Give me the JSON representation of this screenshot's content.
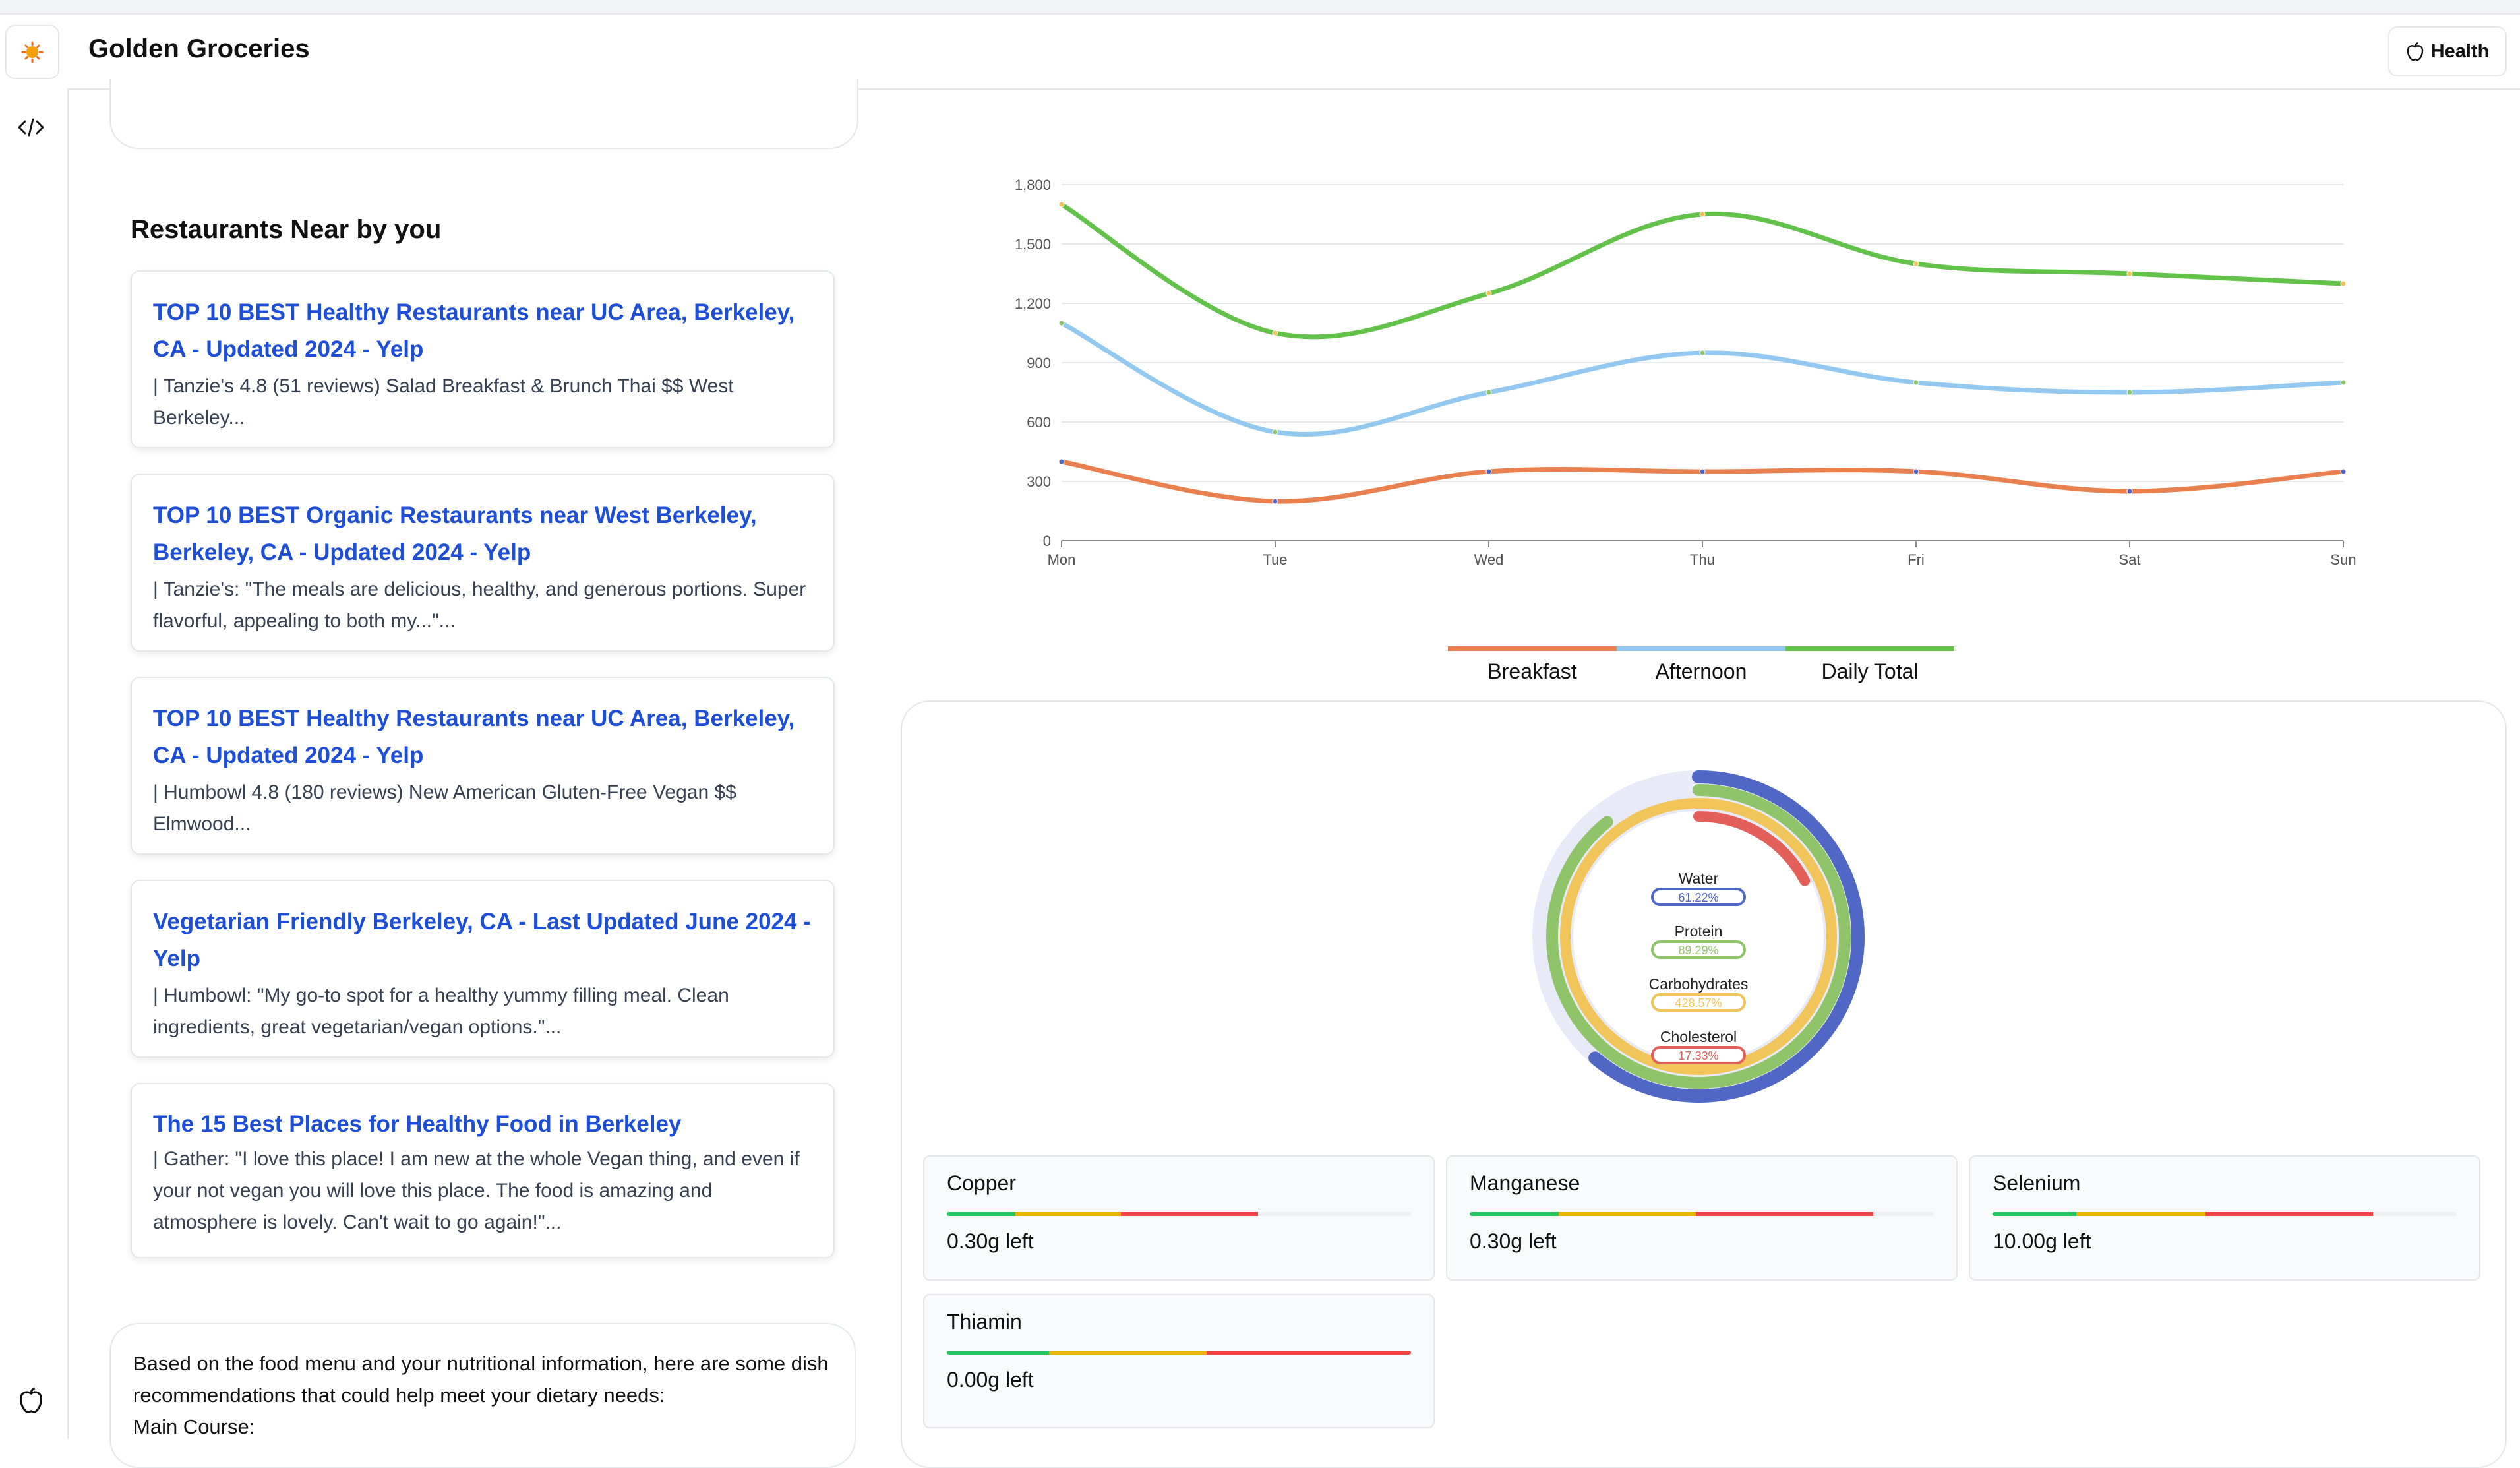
{
  "app": {
    "title": "Golden Groceries",
    "health_button": "Health"
  },
  "restaurants": {
    "heading": "Restaurants Near by you",
    "items": [
      {
        "title": "TOP 10 BEST Healthy Restaurants near UC Area, Berkeley, CA - Updated 2024 - Yelp",
        "snippet": "| Tanzie's 4.8 (51 reviews) Salad Breakfast & Brunch Thai $$ West Berkeley..."
      },
      {
        "title": "TOP 10 BEST Organic Restaurants near West Berkeley, Berkeley, CA - Updated 2024 - Yelp",
        "snippet": "| Tanzie's: \"The meals are delicious, healthy, and generous portions. Super flavorful, appealing to both my...\"..."
      },
      {
        "title": "TOP 10 BEST Healthy Restaurants near UC Area, Berkeley, CA - Updated 2024 - Yelp",
        "snippet": "| Humbowl 4.8 (180 reviews) New American Gluten-Free Vegan $$ Elmwood..."
      },
      {
        "title": "Vegetarian Friendly Berkeley, CA - Last Updated June 2024 - Yelp",
        "snippet": "| Humbowl: \"My go-to spot for a healthy yummy filling meal. Clean ingredients, great vegetarian/vegan options.\"..."
      },
      {
        "title": "The 15 Best Places for Healthy Food in Berkeley",
        "snippet": "| Gather: \"I love this place! I am new at the whole Vegan thing, and even if your not vegan you will love this place. The food is amazing and atmosphere is lovely. Can't wait to go again!\"..."
      }
    ]
  },
  "recommendation": {
    "line1": "Based on the food menu and your nutritional information, here are some dish recommendations that could help meet your dietary needs:",
    "line2": "Main Course:"
  },
  "chart_data": {
    "type": "line",
    "categories": [
      "Mon",
      "Tue",
      "Wed",
      "Thu",
      "Fri",
      "Sat",
      "Sun"
    ],
    "series": [
      {
        "name": "Breakfast",
        "color": "#e8804f",
        "values": [
          400,
          200,
          350,
          350,
          350,
          250,
          350
        ]
      },
      {
        "name": "Afternoon",
        "color": "#93c9f0",
        "values": [
          1100,
          550,
          750,
          950,
          800,
          750,
          800
        ]
      },
      {
        "name": "Daily Total",
        "color": "#63c24a",
        "values": [
          1700,
          1050,
          1250,
          1650,
          1400,
          1350,
          1300
        ]
      }
    ],
    "ylim": [
      0,
      1800
    ],
    "yticks": [
      "0",
      "300",
      "600",
      "900",
      "1,200",
      "1,500",
      "1,800"
    ],
    "grid": true,
    "legend": "bottom"
  },
  "nutrition_rings": [
    {
      "label": "Water",
      "value": "61.22%",
      "fraction": 0.6122,
      "color": "#5067c5"
    },
    {
      "label": "Protein",
      "value": "89.29%",
      "fraction": 0.8929,
      "color": "#8fc46a"
    },
    {
      "label": "Carbohydrates",
      "value": "428.57%",
      "fraction": 1.0,
      "color": "#f2c55a"
    },
    {
      "label": "Cholesterol",
      "value": "17.33%",
      "fraction": 0.1733,
      "color": "#e3605a"
    }
  ],
  "minerals": [
    {
      "name": "Copper",
      "left": "0.30g left",
      "fill_percent": 67
    },
    {
      "name": "Manganese",
      "left": "0.30g left",
      "fill_percent": 87
    },
    {
      "name": "Selenium",
      "left": "10.00g left",
      "fill_percent": 82
    },
    {
      "name": "Thiamin",
      "left": "0.00g left",
      "fill_percent": 100
    }
  ],
  "mineral_bar_colors": [
    "#22c55e",
    "#eab308",
    "#ef4444"
  ],
  "icons": {
    "logo": "sun-logo-icon",
    "code": "code-icon",
    "health": "apple-icon",
    "rail_bottom": "apple-icon"
  }
}
